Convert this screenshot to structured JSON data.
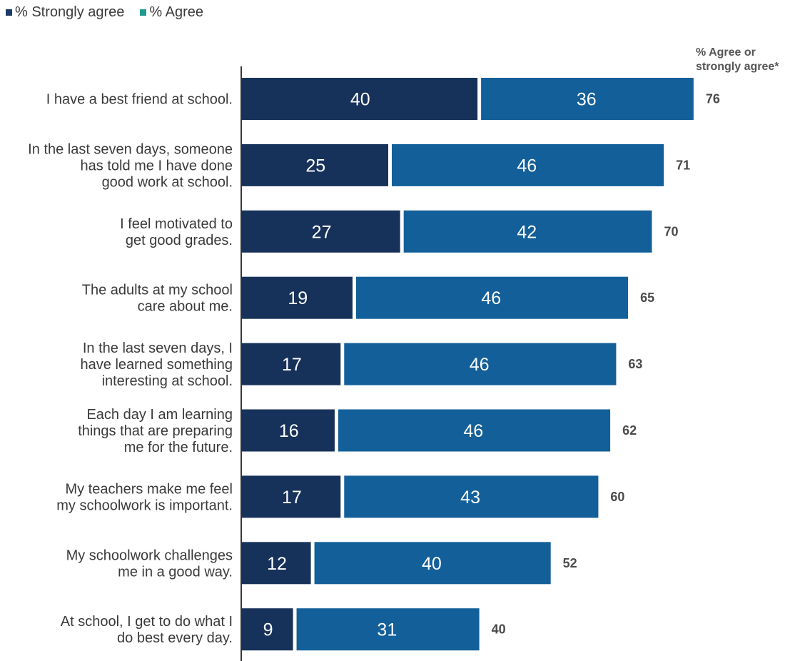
{
  "chart_data": {
    "type": "bar",
    "stacked": true,
    "orientation": "horizontal",
    "legend": [
      {
        "label": "% Strongly agree",
        "color": "#1a3b66"
      },
      {
        "label": "% Agree",
        "color": "#1f9a8f"
      }
    ],
    "total_header": [
      "% Agree or",
      "strongly agree*"
    ],
    "categories": [
      [
        "I have a best friend at school."
      ],
      [
        "In the last seven days, someone",
        "has told me I have done",
        "good work at school."
      ],
      [
        "I feel motivated to",
        "get good grades."
      ],
      [
        "The adults at my school",
        "care about me."
      ],
      [
        "In the last seven days, I",
        "have learned something",
        "interesting at school."
      ],
      [
        "Each day I am learning",
        "things that are preparing",
        "me for the future."
      ],
      [
        "My teachers make me feel",
        "my schoolwork is important."
      ],
      [
        "My schoolwork challenges",
        "me in a good way."
      ],
      [
        "At school, I get to do what I",
        "do best every day."
      ]
    ],
    "series": [
      {
        "name": "% Strongly agree",
        "color": "#17325a",
        "values": [
          40,
          25,
          27,
          19,
          17,
          16,
          17,
          12,
          9
        ]
      },
      {
        "name": "% Agree",
        "color": "#135f99",
        "values": [
          36,
          46,
          42,
          46,
          46,
          46,
          43,
          40,
          31
        ]
      }
    ],
    "totals": [
      76,
      71,
      70,
      65,
      63,
      62,
      60,
      52,
      40
    ],
    "xlim": [
      0,
      76
    ]
  }
}
